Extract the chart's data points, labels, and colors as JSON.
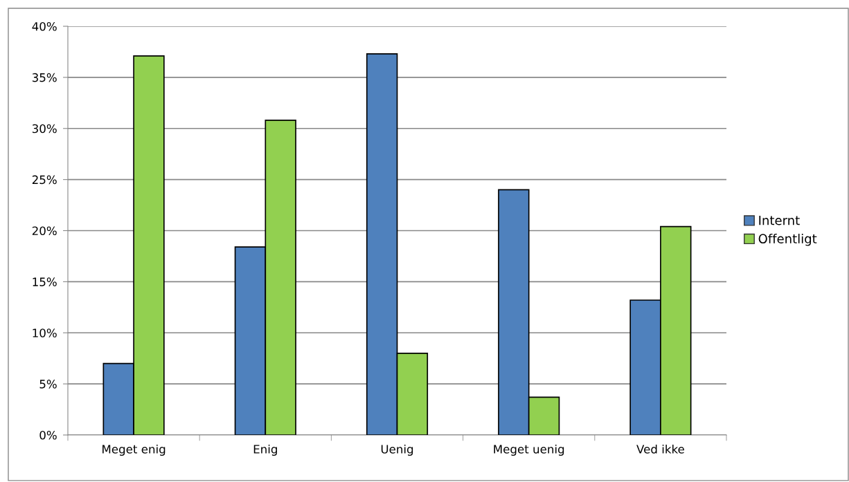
{
  "chart_data": {
    "type": "bar",
    "categories": [
      "Meget enig",
      "Enig",
      "Uenig",
      "Meget uenig",
      "Ved ikke"
    ],
    "series": [
      {
        "name": "Internt",
        "color": "#4f81bd",
        "values": [
          7.0,
          18.4,
          37.3,
          24.0,
          13.2
        ]
      },
      {
        "name": "Offentligt",
        "color": "#92d050",
        "values": [
          37.1,
          30.8,
          8.0,
          3.7,
          20.4
        ]
      }
    ],
    "ylim": [
      0,
      40
    ],
    "yticks": [
      {
        "value": 0,
        "label": "0%"
      },
      {
        "value": 5,
        "label": "5%"
      },
      {
        "value": 10,
        "label": "10%"
      },
      {
        "value": 15,
        "label": "15%"
      },
      {
        "value": 20,
        "label": "20%"
      },
      {
        "value": 25,
        "label": "25%"
      },
      {
        "value": 30,
        "label": "30%"
      },
      {
        "value": 35,
        "label": "35%"
      },
      {
        "value": 40,
        "label": "40%"
      }
    ],
    "grid": "y",
    "legend": "right"
  }
}
